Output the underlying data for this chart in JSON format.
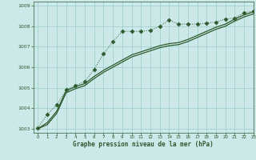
{
  "title": "Graphe pression niveau de la mer (hPa)",
  "bg_color": "#cce8e8",
  "grid_color": "#99cccc",
  "line_color": "#2d5a2d",
  "xlim": [
    -0.5,
    23
  ],
  "ylim": [
    1002.8,
    1009.2
  ],
  "xticks": [
    0,
    1,
    2,
    3,
    4,
    5,
    6,
    7,
    8,
    9,
    10,
    11,
    12,
    13,
    14,
    15,
    16,
    17,
    18,
    19,
    20,
    21,
    22,
    23
  ],
  "yticks": [
    1003,
    1004,
    1005,
    1006,
    1007,
    1008,
    1009
  ],
  "dotted_line": {
    "x": [
      0,
      1,
      2,
      3,
      4,
      5,
      6,
      7,
      8,
      9,
      10,
      11,
      12,
      13,
      14,
      15,
      16,
      17,
      18,
      19,
      20,
      21,
      22,
      23
    ],
    "y": [
      1003.05,
      1003.7,
      1004.15,
      1004.9,
      1005.1,
      1005.3,
      1005.9,
      1006.65,
      1007.25,
      1007.75,
      1007.75,
      1007.75,
      1007.8,
      1008.0,
      1008.3,
      1008.1,
      1008.1,
      1008.1,
      1008.15,
      1008.2,
      1008.35,
      1008.4,
      1008.65,
      1008.75
    ]
  },
  "smooth_line1": {
    "x": [
      0,
      1,
      2,
      3,
      4,
      5,
      6,
      7,
      8,
      9,
      10,
      11,
      12,
      13,
      14,
      15,
      16,
      17,
      18,
      19,
      20,
      21,
      22,
      23
    ],
    "y": [
      1003.0,
      1003.3,
      1003.85,
      1004.85,
      1005.05,
      1005.2,
      1005.55,
      1005.85,
      1006.1,
      1006.35,
      1006.6,
      1006.75,
      1006.9,
      1007.05,
      1007.15,
      1007.2,
      1007.35,
      1007.55,
      1007.75,
      1007.95,
      1008.1,
      1008.35,
      1008.55,
      1008.7
    ]
  },
  "smooth_line2": {
    "x": [
      0,
      1,
      2,
      3,
      4,
      5,
      6,
      7,
      8,
      9,
      10,
      11,
      12,
      13,
      14,
      15,
      16,
      17,
      18,
      19,
      20,
      21,
      22,
      23
    ],
    "y": [
      1003.0,
      1003.2,
      1003.75,
      1004.75,
      1004.95,
      1005.1,
      1005.45,
      1005.75,
      1006.0,
      1006.25,
      1006.5,
      1006.65,
      1006.8,
      1006.95,
      1007.05,
      1007.1,
      1007.25,
      1007.45,
      1007.65,
      1007.85,
      1008.0,
      1008.25,
      1008.45,
      1008.6
    ]
  }
}
